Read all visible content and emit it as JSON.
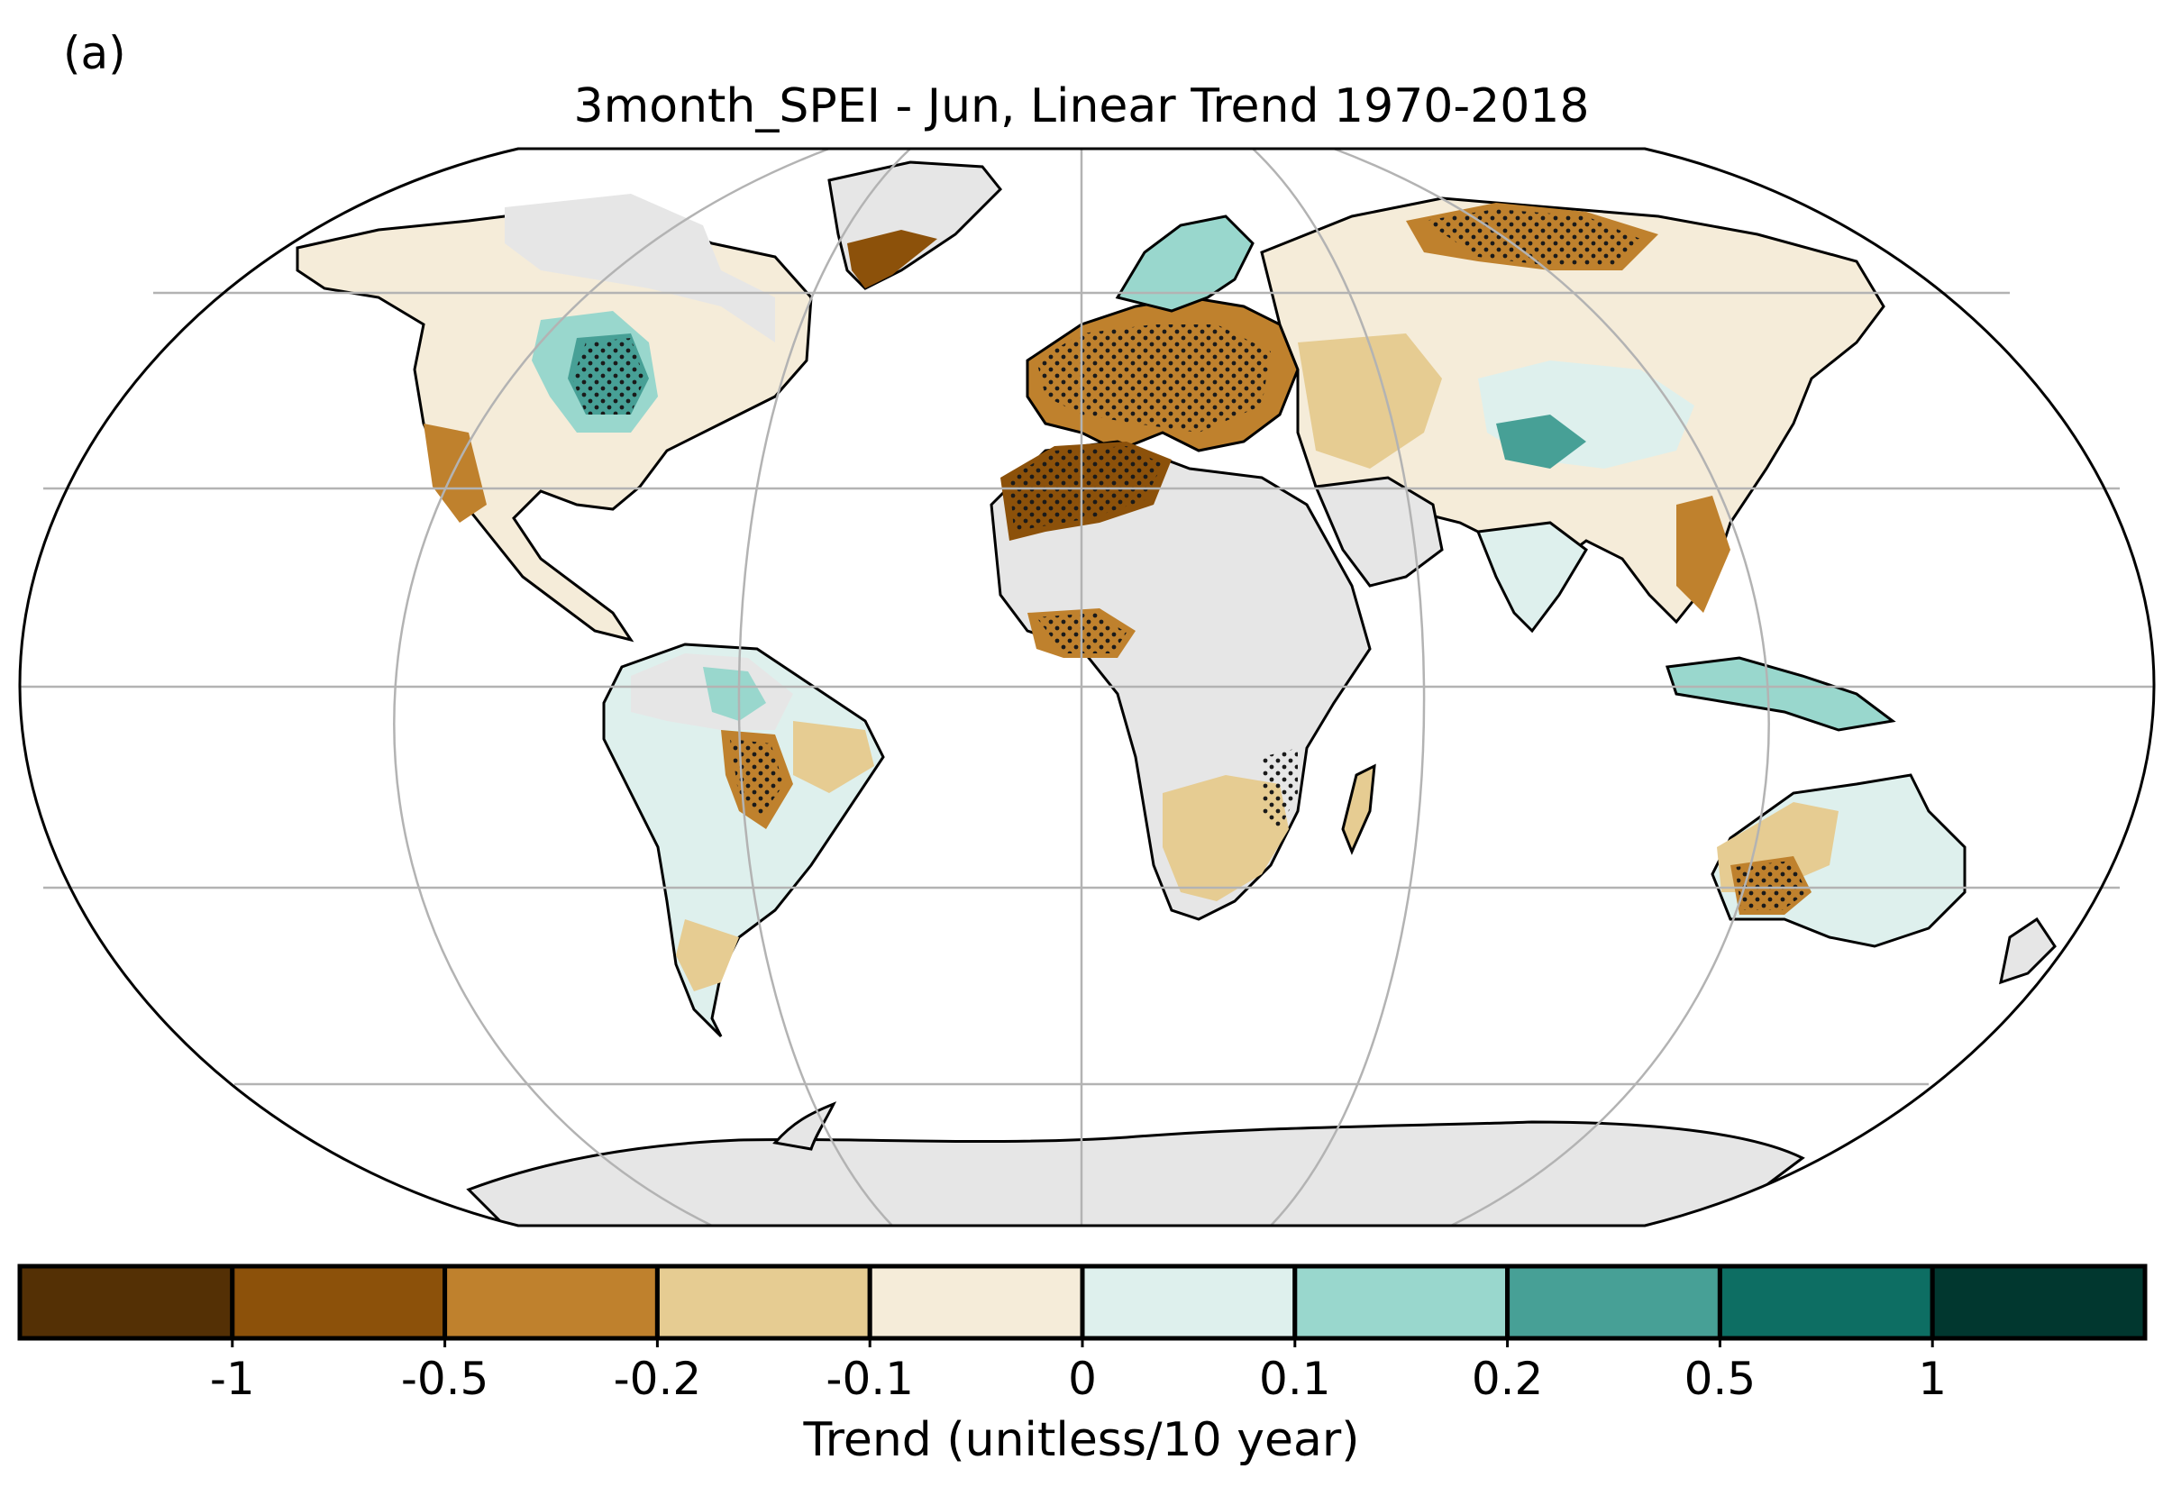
{
  "panel_label": "(a)",
  "title": "3month_SPEI - Jun, Linear Trend 1970-2018",
  "colorbar": {
    "label": "Trend (unitless/10 year)",
    "tick_labels": [
      "-1",
      "-0.5",
      "-0.2",
      "-0.1",
      "0",
      "0.1",
      "0.2",
      "0.5",
      "1"
    ],
    "colors": [
      "#543005",
      "#8c510a",
      "#bf812d",
      "#e6cc92",
      "#f5ecd9",
      "#def0ed",
      "#99d7cd",
      "#47a096",
      "#0d6e63",
      "#01372f"
    ]
  },
  "map": {
    "projection": "Robinson",
    "missing_color": "#e6e6e6",
    "graticule_color": "#b3b3b3",
    "stippling": "significant trends"
  }
}
